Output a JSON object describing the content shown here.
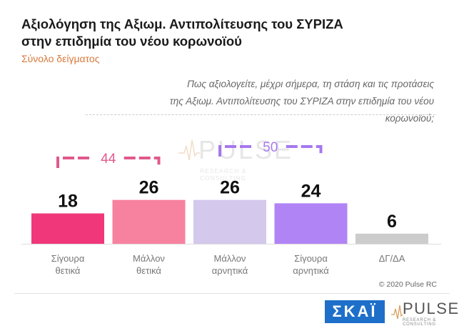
{
  "title_line1": "Αξιολόγηση της Αξιωμ. Αντιπολίτευσης του ΣΥΡΙΖΑ",
  "title_line2": "στην επιδημία του νέου κορωνοϊού",
  "subtitle": "Σύνολο δείγματος",
  "question_line1": "Πως αξιολογείτε, μέχρι σήμερα, τη στάση και τις προτάσεις",
  "question_line2": "της Αξιωμ. Αντιπολίτευσης του ΣΥΡΙΖΑ στην επιδημία του νέου κορωνοϊού;",
  "copyright": "© 2020 Pulse RC",
  "logos": {
    "skai": "ΣΚΑΪ",
    "pulse": "PULSE",
    "pulse_sub": "RESEARCH & CONSULTING"
  },
  "watermark": {
    "text": "PULSE",
    "sub": "RESEARCH & CONSULTING"
  },
  "chart_data": {
    "type": "bar",
    "categories": [
      [
        "Σίγουρα",
        "θετικά"
      ],
      [
        "Μάλλον",
        "θετικά"
      ],
      [
        "Μάλλον",
        "αρνητικά"
      ],
      [
        "Σίγουρα",
        "αρνητικά"
      ],
      [
        "ΔΓ/ΔΑ"
      ]
    ],
    "values": [
      18,
      26,
      26,
      24,
      6
    ],
    "colors": [
      "#f0377a",
      "#f7829f",
      "#d4c8ec",
      "#b184f5",
      "#cccccc"
    ],
    "brackets": [
      {
        "label": "44",
        "from": 0,
        "to": 1,
        "color": "#e0598c"
      },
      {
        "label": "50",
        "from": 2,
        "to": 3,
        "color": "#a678ef"
      }
    ],
    "ylim": [
      0,
      30
    ]
  }
}
